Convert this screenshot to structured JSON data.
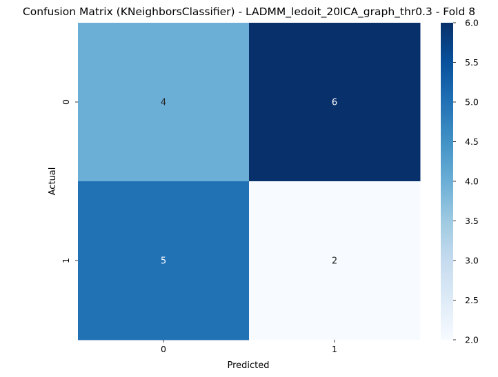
{
  "chart_data": {
    "type": "heatmap",
    "title": "Confusion Matrix (KNeighborsClassifier) - LADMM_ledoit_20ICA_graph_thr0.3 - Fold 8",
    "xlabel": "Predicted",
    "ylabel": "Actual",
    "x_categories": [
      "0",
      "1"
    ],
    "y_categories": [
      "0",
      "1"
    ],
    "values": [
      [
        4,
        6
      ],
      [
        5,
        2
      ]
    ],
    "colormap": "Blues",
    "colorbar": {
      "vmin": 2.0,
      "vmax": 6.0,
      "ticks": [
        "2.0",
        "2.5",
        "3.0",
        "3.5",
        "4.0",
        "4.5",
        "5.0",
        "5.5",
        "6.0"
      ]
    },
    "grid": false
  }
}
